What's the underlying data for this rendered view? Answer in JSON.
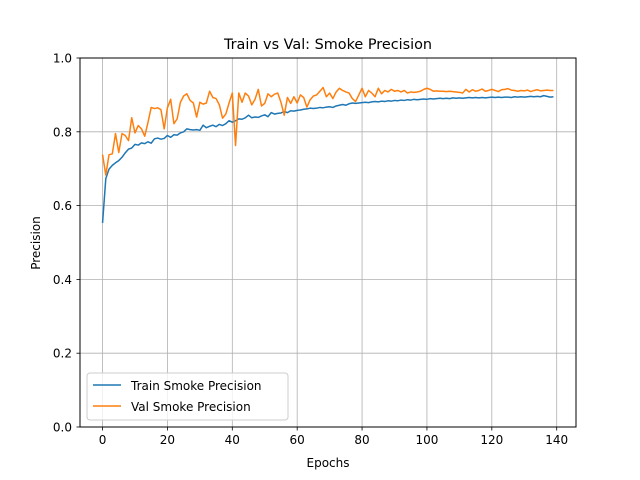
{
  "chart_data": {
    "type": "line",
    "title": "Train vs Val: Smoke Precision",
    "xlabel": "Epochs",
    "ylabel": "Precision",
    "xlim": [
      -6.95,
      145.95
    ],
    "ylim": [
      0.0,
      1.0
    ],
    "xticks": [
      0,
      20,
      40,
      60,
      80,
      100,
      120,
      140
    ],
    "xtick_labels": [
      "0",
      "20",
      "40",
      "60",
      "80",
      "100",
      "120",
      "140"
    ],
    "yticks": [
      0.0,
      0.2,
      0.4,
      0.6,
      0.8,
      1.0
    ],
    "ytick_labels": [
      "0.0",
      "0.2",
      "0.4",
      "0.6",
      "0.8",
      "1.0"
    ],
    "grid": true,
    "legend_position": "lower-left",
    "x_start": 0,
    "series": [
      {
        "name": "Train Smoke Precision",
        "color": "#1f77b4",
        "values": [
          0.553,
          0.673,
          0.699,
          0.709,
          0.716,
          0.722,
          0.731,
          0.743,
          0.753,
          0.756,
          0.766,
          0.764,
          0.77,
          0.768,
          0.773,
          0.769,
          0.781,
          0.783,
          0.78,
          0.782,
          0.79,
          0.785,
          0.792,
          0.791,
          0.797,
          0.8,
          0.808,
          0.806,
          0.805,
          0.806,
          0.804,
          0.818,
          0.811,
          0.815,
          0.818,
          0.814,
          0.82,
          0.817,
          0.822,
          0.83,
          0.826,
          0.83,
          0.835,
          0.834,
          0.838,
          0.845,
          0.838,
          0.84,
          0.839,
          0.843,
          0.846,
          0.841,
          0.852,
          0.848,
          0.85,
          0.851,
          0.855,
          0.852,
          0.857,
          0.856,
          0.858,
          0.859,
          0.861,
          0.862,
          0.864,
          0.863,
          0.864,
          0.866,
          0.865,
          0.867,
          0.868,
          0.866,
          0.87,
          0.872,
          0.874,
          0.872,
          0.876,
          0.878,
          0.877,
          0.878,
          0.879,
          0.88,
          0.879,
          0.881,
          0.882,
          0.881,
          0.883,
          0.882,
          0.884,
          0.883,
          0.885,
          0.884,
          0.886,
          0.885,
          0.887,
          0.886,
          0.888,
          0.887,
          0.888,
          0.889,
          0.888,
          0.89,
          0.889,
          0.89,
          0.891,
          0.89,
          0.891,
          0.89,
          0.892,
          0.891,
          0.892,
          0.891,
          0.892,
          0.893,
          0.892,
          0.893,
          0.892,
          0.893,
          0.892,
          0.893,
          0.894,
          0.893,
          0.894,
          0.893,
          0.894,
          0.894,
          0.893,
          0.895,
          0.894,
          0.895,
          0.894,
          0.895,
          0.896,
          0.895,
          0.896,
          0.895,
          0.898,
          0.896,
          0.894,
          0.895
        ]
      },
      {
        "name": "Val Smoke Precision",
        "color": "#ff7f0e",
        "values": [
          0.738,
          0.683,
          0.738,
          0.74,
          0.795,
          0.744,
          0.795,
          0.79,
          0.776,
          0.838,
          0.797,
          0.817,
          0.808,
          0.788,
          0.825,
          0.866,
          0.863,
          0.865,
          0.86,
          0.808,
          0.865,
          0.888,
          0.822,
          0.835,
          0.88,
          0.897,
          0.903,
          0.885,
          0.878,
          0.84,
          0.88,
          0.875,
          0.878,
          0.91,
          0.893,
          0.89,
          0.873,
          0.837,
          0.848,
          0.878,
          0.905,
          0.763,
          0.905,
          0.88,
          0.905,
          0.897,
          0.873,
          0.888,
          0.915,
          0.87,
          0.877,
          0.903,
          0.895,
          0.902,
          0.905,
          0.88,
          0.845,
          0.893,
          0.877,
          0.895,
          0.878,
          0.9,
          0.893,
          0.867,
          0.887,
          0.897,
          0.9,
          0.91,
          0.92,
          0.895,
          0.905,
          0.89,
          0.908,
          0.918,
          0.912,
          0.908,
          0.905,
          0.89,
          0.882,
          0.9,
          0.918,
          0.895,
          0.912,
          0.905,
          0.895,
          0.918,
          0.903,
          0.912,
          0.908,
          0.915,
          0.91,
          0.912,
          0.908,
          0.912,
          0.905,
          0.908,
          0.907,
          0.908,
          0.91,
          0.915,
          0.918,
          0.915,
          0.91,
          0.911,
          0.91,
          0.91,
          0.909,
          0.91,
          0.909,
          0.908,
          0.907,
          0.905,
          0.915,
          0.908,
          0.914,
          0.91,
          0.912,
          0.916,
          0.91,
          0.912,
          0.915,
          0.912,
          0.909,
          0.914,
          0.915,
          0.917,
          0.913,
          0.912,
          0.91,
          0.912,
          0.911,
          0.913,
          0.909,
          0.912,
          0.914,
          0.911,
          0.912,
          0.913,
          0.912,
          0.912
        ]
      }
    ]
  }
}
